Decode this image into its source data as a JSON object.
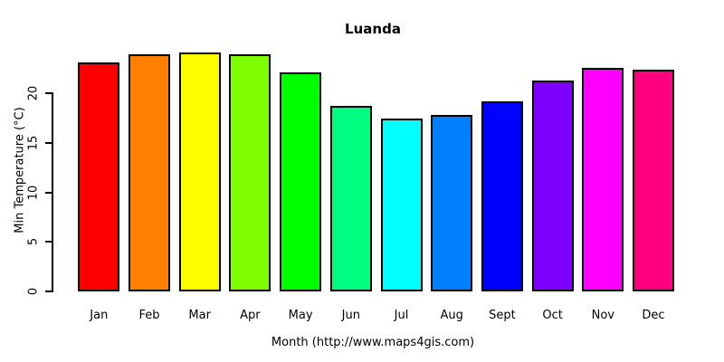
{
  "figure": {
    "background": "#ffffff",
    "text_color": "#000000"
  },
  "chart_data": {
    "type": "bar",
    "title": "Luanda",
    "xlabel": "Month (http://www.maps4gis.com)",
    "ylabel": "Min Temperature (°C)",
    "categories": [
      "Jan",
      "Feb",
      "Mar",
      "Apr",
      "May",
      "Jun",
      "Jul",
      "Aug",
      "Sept",
      "Oct",
      "Nov",
      "Dec"
    ],
    "values": [
      23.1,
      23.9,
      24.1,
      23.9,
      22.1,
      18.7,
      17.4,
      17.8,
      19.2,
      21.3,
      22.6,
      22.4
    ],
    "colors": [
      "#FF0000",
      "#FF8000",
      "#FFFF00",
      "#80FF00",
      "#00FF00",
      "#00FF80",
      "#00FFFF",
      "#0080FF",
      "#0000FF",
      "#8000FF",
      "#FF00FF",
      "#FF0080"
    ],
    "bar_border_color": "#000000",
    "yticks": [
      0,
      5,
      10,
      15,
      20
    ],
    "ylim": [
      0,
      20
    ],
    "grid": false,
    "legend": "none"
  }
}
